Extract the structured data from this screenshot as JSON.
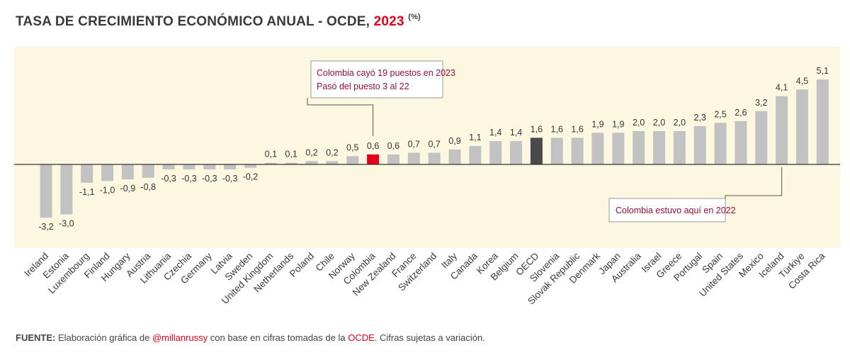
{
  "header": {
    "title_main": "TASA DE CRECIMIENTO ECONÓMICO ANUAL - OCDE,",
    "title_year": "2023",
    "title_unit": "(%)"
  },
  "source": {
    "label": "FUENTE:",
    "text1": "Elaboración gráfica de",
    "author": "@millanrussy",
    "text2": "con base en cifras tomadas de la",
    "org": "OCDE",
    "text3": ". Cifras sujetas a variación."
  },
  "colors": {
    "bar": "#c2c2c2",
    "highlight": "#e3001b",
    "oecd": "#4a4a4a",
    "panel": "#fcf7e1",
    "annotation_text": "#9a0e3a"
  },
  "chart_data": {
    "type": "bar",
    "title": "TASA DE CRECIMIENTO ECONÓMICO ANUAL - OCDE, 2023 (%)",
    "xlabel": "",
    "ylabel": "",
    "categories": [
      "Ireland",
      "Estonia",
      "Luxembourg",
      "Finland",
      "Hungary",
      "Austria",
      "Lithuania",
      "Czechia",
      "Germany",
      "Latvia",
      "Sweden",
      "United Kingdom",
      "Netherlands",
      "Poland",
      "Chile",
      "Norway",
      "Colombia",
      "New Zealand",
      "France",
      "Switzerland",
      "Italy",
      "Canada",
      "Korea",
      "Belgium",
      "OECD",
      "Slovenia",
      "Slovak Republic",
      "Denmark",
      "Japan",
      "Australia",
      "Israel",
      "Greece",
      "Portugal",
      "Spain",
      "United States",
      "Mexico",
      "Iceland",
      "Türkiye",
      "Costa Rica"
    ],
    "values": [
      -3.2,
      -3.0,
      -1.1,
      -1.0,
      -0.9,
      -0.8,
      -0.3,
      -0.3,
      -0.3,
      -0.3,
      -0.2,
      0.1,
      0.1,
      0.2,
      0.2,
      0.5,
      0.6,
      0.6,
      0.7,
      0.7,
      0.9,
      1.1,
      1.4,
      1.4,
      1.6,
      1.6,
      1.6,
      1.9,
      1.9,
      2.0,
      2.0,
      2.0,
      2.3,
      2.5,
      2.6,
      3.2,
      4.1,
      4.5,
      5.1
    ],
    "value_labels": [
      "-3,2",
      "-3,0",
      "-1,1",
      "-1,0",
      "-0,9",
      "-0,8",
      "-0,3",
      "-0,3",
      "-0,3",
      "-0,3",
      "-0,2",
      "0,1",
      "0,1",
      "0,2",
      "0,2",
      "0,5",
      "0,6",
      "0,6",
      "0,7",
      "0,7",
      "0,9",
      "1,1",
      "1,4",
      "1,4",
      "1,6",
      "1,6",
      "1,6",
      "1,9",
      "1,9",
      "2,0",
      "2,0",
      "2,0",
      "2,3",
      "2,5",
      "2,6",
      "3,2",
      "4,1",
      "4,5",
      "5,1"
    ],
    "highlight": "Colombia",
    "aggregate": "OECD",
    "ylim": [
      -4.0,
      6.4
    ],
    "grid": false,
    "annotations": [
      {
        "target": "Colombia",
        "lines": [
          "Colombia cayó 19 puestos en 2023",
          "Pasó del puesto 3 al 22"
        ]
      },
      {
        "target": "Iceland",
        "lines": [
          "Colombia estuvo aquí en 2022"
        ]
      }
    ]
  }
}
